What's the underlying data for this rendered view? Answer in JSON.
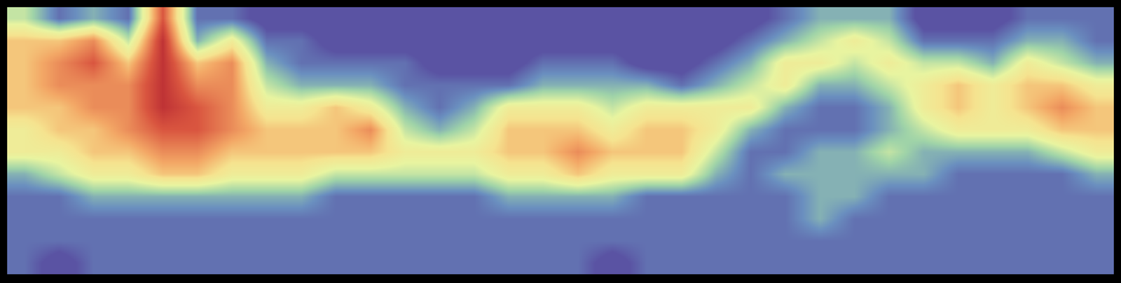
{
  "chart_data": {
    "type": "heatmap",
    "zlim": [
      0,
      10
    ],
    "grid": false,
    "tick_labels": false,
    "cells": [
      [
        4,
        2,
        3,
        2,
        8,
        2,
        2,
        1,
        1,
        1,
        1,
        1,
        1,
        1,
        1,
        1,
        1,
        1,
        1,
        1,
        1,
        1,
        2,
        3,
        3,
        3,
        1,
        1,
        1,
        2,
        2,
        2
      ],
      [
        6,
        6,
        7,
        4,
        9,
        3,
        5,
        2,
        2,
        1,
        1,
        1,
        1,
        1,
        1,
        1,
        1,
        1,
        1,
        1,
        1,
        2,
        3,
        4,
        5,
        4,
        2,
        2,
        2,
        3,
        3,
        2
      ],
      [
        6,
        7,
        8,
        6,
        9,
        6,
        7,
        3,
        2,
        2,
        2,
        2,
        1,
        1,
        1,
        2,
        2,
        2,
        1,
        1,
        2,
        3,
        5,
        5,
        4,
        5,
        4,
        4,
        3,
        5,
        4,
        3
      ],
      [
        6,
        7,
        7,
        7,
        9,
        7,
        7,
        4,
        3,
        3,
        3,
        2,
        2,
        2,
        2,
        3,
        3,
        3,
        3,
        2,
        3,
        4,
        5,
        3,
        3,
        4,
        5,
        6,
        5,
        6,
        6,
        5
      ],
      [
        6,
        6,
        7,
        7,
        9,
        8,
        7,
        5,
        5,
        6,
        5,
        3,
        2,
        3,
        5,
        5,
        5,
        4,
        5,
        5,
        5,
        5,
        3,
        2,
        2,
        3,
        5,
        6,
        5,
        6,
        7,
        6
      ],
      [
        5,
        6,
        6,
        7,
        8,
        8,
        7,
        6,
        6,
        6,
        7,
        4,
        3,
        4,
        6,
        6,
        6,
        5,
        6,
        6,
        5,
        3,
        2,
        2,
        2,
        3,
        4,
        5,
        5,
        5,
        6,
        6
      ],
      [
        5,
        5,
        6,
        6,
        7,
        7,
        6,
        6,
        6,
        6,
        6,
        5,
        5,
        5,
        6,
        6,
        7,
        6,
        6,
        6,
        4,
        2,
        2,
        3,
        3,
        4,
        3,
        3,
        3,
        3,
        4,
        5
      ],
      [
        3,
        4,
        5,
        5,
        6,
        6,
        5,
        5,
        5,
        4,
        4,
        4,
        4,
        4,
        5,
        5,
        6,
        5,
        5,
        5,
        3,
        2,
        3,
        3,
        3,
        3,
        3,
        2,
        2,
        2,
        2,
        3
      ],
      [
        2,
        2,
        3,
        3,
        3,
        3,
        3,
        3,
        3,
        2,
        2,
        2,
        2,
        2,
        3,
        3,
        3,
        3,
        2,
        2,
        2,
        2,
        2,
        3,
        3,
        2,
        2,
        2,
        2,
        2,
        2,
        2
      ],
      [
        2,
        2,
        2,
        2,
        2,
        2,
        2,
        2,
        2,
        2,
        2,
        2,
        2,
        2,
        2,
        2,
        2,
        2,
        2,
        2,
        2,
        2,
        2,
        3,
        2,
        2,
        2,
        2,
        2,
        2,
        2,
        2
      ],
      [
        2,
        2,
        2,
        2,
        2,
        2,
        2,
        2,
        2,
        2,
        2,
        2,
        2,
        2,
        2,
        2,
        2,
        2,
        2,
        2,
        2,
        2,
        2,
        2,
        2,
        2,
        2,
        2,
        2,
        2,
        2,
        2
      ],
      [
        2,
        1,
        2,
        2,
        2,
        2,
        2,
        2,
        2,
        2,
        2,
        2,
        2,
        2,
        2,
        2,
        2,
        1,
        2,
        2,
        2,
        2,
        2,
        2,
        2,
        2,
        2,
        2,
        2,
        2,
        2,
        2
      ]
    ]
  }
}
